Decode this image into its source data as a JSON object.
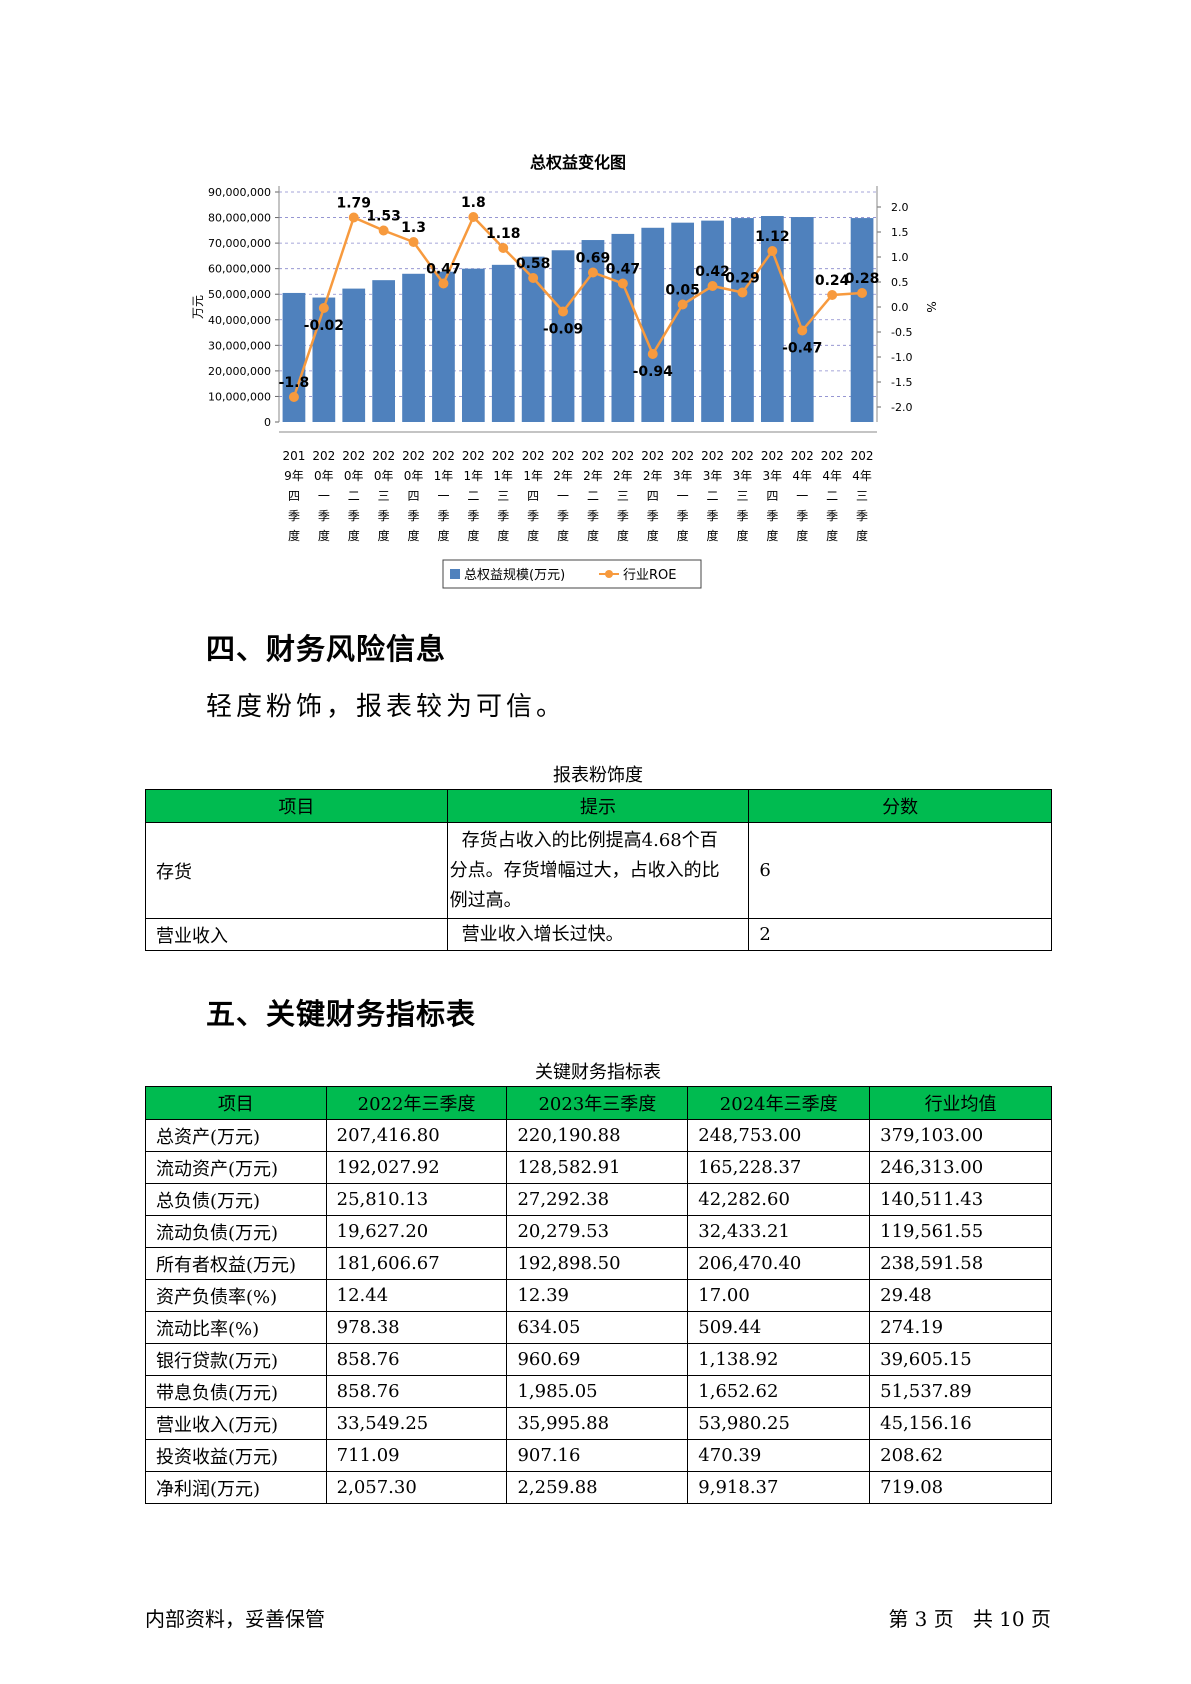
{
  "chart_data": {
    "type": "bar+line",
    "title": "总权益变化图",
    "ylabel_left": "万元",
    "ylabel_right": "%",
    "categories": [
      "2019年四季度",
      "2020年一季度",
      "2020年二季度",
      "2020年三季度",
      "2020年四季度",
      "2021年一季度",
      "2021年二季度",
      "2021年三季度",
      "2021年四季度",
      "2022年一季度",
      "2022年二季度",
      "2022年三季度",
      "2022年四季度",
      "2023年一季度",
      "2023年二季度",
      "2023年三季度",
      "2023年四季度",
      "2024年一季度",
      "2024年二季度",
      "2024年三季度"
    ],
    "category_lines": [
      [
        "201",
        "9年",
        "四",
        "季",
        "度"
      ],
      [
        "202",
        "0年",
        "一",
        "季",
        "度"
      ],
      [
        "202",
        "0年",
        "二",
        "季",
        "度"
      ],
      [
        "202",
        "0年",
        "三",
        "季",
        "度"
      ],
      [
        "202",
        "0年",
        "四",
        "季",
        "度"
      ],
      [
        "202",
        "1年",
        "一",
        "季",
        "度"
      ],
      [
        "202",
        "1年",
        "二",
        "季",
        "度"
      ],
      [
        "202",
        "1年",
        "三",
        "季",
        "度"
      ],
      [
        "202",
        "1年",
        "四",
        "季",
        "度"
      ],
      [
        "202",
        "2年",
        "一",
        "季",
        "度"
      ],
      [
        "202",
        "2年",
        "二",
        "季",
        "度"
      ],
      [
        "202",
        "2年",
        "三",
        "季",
        "度"
      ],
      [
        "202",
        "2年",
        "四",
        "季",
        "度"
      ],
      [
        "202",
        "3年",
        "一",
        "季",
        "度"
      ],
      [
        "202",
        "3年",
        "二",
        "季",
        "度"
      ],
      [
        "202",
        "3年",
        "三",
        "季",
        "度"
      ],
      [
        "202",
        "3年",
        "四",
        "季",
        "度"
      ],
      [
        "202",
        "4年",
        "一",
        "季",
        "度"
      ],
      [
        "202",
        "4年",
        "二",
        "季",
        "度"
      ],
      [
        "202",
        "4年",
        "三",
        "季",
        "度"
      ]
    ],
    "series": [
      {
        "name": "总权益规模(万元)",
        "type": "bar",
        "axis": "left",
        "color": "#4f81bd",
        "values": [
          50500000,
          48700000,
          52200000,
          55500000,
          58000000,
          58800000,
          60000000,
          61500000,
          64700000,
          67200000,
          71200000,
          73600000,
          76000000,
          78000000,
          78800000,
          79800000,
          80600000,
          80200000,
          null,
          79800000
        ]
      },
      {
        "name": "行业ROE",
        "type": "line",
        "axis": "right",
        "color": "#f79a3e",
        "values": [
          -1.8,
          -0.02,
          1.79,
          1.53,
          1.3,
          0.47,
          1.8,
          1.18,
          0.58,
          -0.09,
          0.69,
          0.47,
          -0.94,
          0.05,
          0.42,
          0.29,
          1.12,
          -0.47,
          0.24,
          0.28
        ],
        "labels": [
          "-1.8",
          "-0.02",
          "1.79",
          "1.53",
          "1.3",
          "0.47",
          "1.8",
          "1.18",
          "0.58",
          "-0.09",
          "0.69",
          "0.47",
          "-0.94",
          "0.05",
          "0.42",
          "0.29",
          "1.12",
          "-0.47",
          "0.24",
          "0.28"
        ]
      }
    ],
    "ylim_left": [
      0,
      90000000
    ],
    "yticks_left": [
      "0",
      "10,000,000",
      "20,000,000",
      "30,000,000",
      "40,000,000",
      "50,000,000",
      "60,000,000",
      "70,000,000",
      "80,000,000",
      "90,000,000"
    ],
    "ylim_right": [
      -2.3,
      2.3
    ],
    "yticks_right": [
      "-2.0",
      "-1.5",
      "-1.0",
      "-0.5",
      "0.0",
      "0.5",
      "1.0",
      "1.5",
      "2.0"
    ],
    "yticks_right_values": [
      -2.0,
      -1.5,
      -1.0,
      -0.5,
      0.0,
      0.5,
      1.0,
      1.5,
      2.0
    ],
    "grid": true,
    "legend_placement": "bottom"
  },
  "section4": {
    "title": "四、财务风险信息",
    "text": "轻度粉饰，报表较为可信。"
  },
  "risk_table": {
    "caption": "报表粉饰度",
    "headers": [
      "项目",
      "提示",
      "分数"
    ],
    "rows": [
      {
        "item": "存货",
        "hint_lines": [
          "存货占收入的比例提高4.68个百",
          "分点。存货增幅过大，占收入的比",
          "例过高。"
        ],
        "score": "6"
      },
      {
        "item": "营业收入",
        "hint_lines": [
          "营业收入增长过快。"
        ],
        "score": "2"
      }
    ]
  },
  "section5": {
    "title": "五、关键财务指标表"
  },
  "kpi_table": {
    "caption": "关键财务指标表",
    "headers": [
      "项目",
      "2022年三季度",
      "2023年三季度",
      "2024年三季度",
      "行业均值"
    ],
    "rows": [
      [
        "总资产(万元)",
        "207,416.80",
        "220,190.88",
        "248,753.00",
        "379,103.00"
      ],
      [
        "流动资产(万元)",
        "192,027.92",
        "128,582.91",
        "165,228.37",
        "246,313.00"
      ],
      [
        "总负债(万元)",
        "25,810.13",
        "27,292.38",
        "42,282.60",
        "140,511.43"
      ],
      [
        "流动负债(万元)",
        "19,627.20",
        "20,279.53",
        "32,433.21",
        "119,561.55"
      ],
      [
        "所有者权益(万元)",
        "181,606.67",
        "192,898.50",
        "206,470.40",
        "238,591.58"
      ],
      [
        "资产负债率(%)",
        "12.44",
        "12.39",
        "17.00",
        "29.48"
      ],
      [
        "流动比率(%)",
        "978.38",
        "634.05",
        "509.44",
        "274.19"
      ],
      [
        "银行贷款(万元)",
        "858.76",
        "960.69",
        "1,138.92",
        "39,605.15"
      ],
      [
        "带息负债(万元)",
        "858.76",
        "1,985.05",
        "1,652.62",
        "51,537.89"
      ],
      [
        "营业收入(万元)",
        "33,549.25",
        "35,995.88",
        "53,980.25",
        "45,156.16"
      ],
      [
        "投资收益(万元)",
        "711.09",
        "907.16",
        "470.39",
        "208.62"
      ],
      [
        "净利润(万元)",
        "2,057.30",
        "2,259.88",
        "9,918.37",
        "719.08"
      ]
    ]
  },
  "footer": {
    "left": "内部资料，妥善保管",
    "right": "第 3 页   共 10 页"
  }
}
